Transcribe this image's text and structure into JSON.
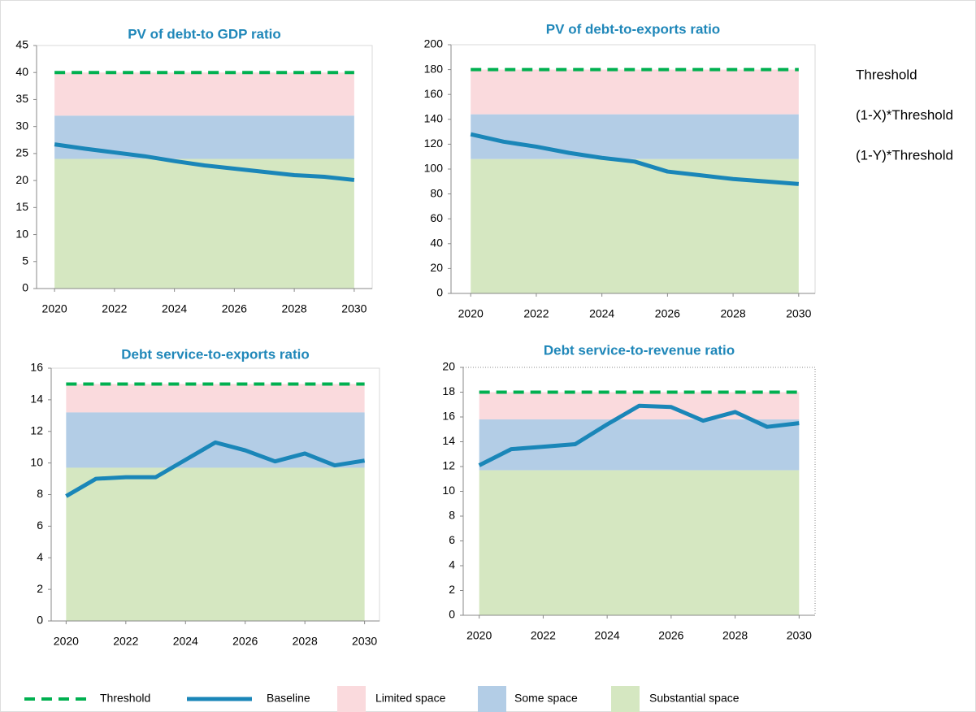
{
  "chart_data": [
    {
      "type": "line",
      "title": "PV of debt-to GDP ratio",
      "x": [
        2020,
        2021,
        2022,
        2023,
        2024,
        2025,
        2026,
        2027,
        2028,
        2029,
        2030
      ],
      "xlim": [
        2019.4,
        2030.6
      ],
      "xticks": [
        2020,
        2022,
        2024,
        2026,
        2028,
        2030
      ],
      "ylim": [
        0,
        45
      ],
      "yticks": [
        0,
        5,
        10,
        15,
        20,
        25,
        30,
        35,
        40,
        45
      ],
      "threshold": 40,
      "x_threshold": 32,
      "y_threshold": 24,
      "series": [
        {
          "color": "#1a86b8",
          "values": [
            26.7,
            25.9,
            25.2,
            24.5,
            23.6,
            22.8,
            22.2,
            21.6,
            21.0,
            20.7,
            20.1
          ]
        }
      ]
    },
    {
      "type": "line",
      "title": "PV of debt-to-exports ratio",
      "x": [
        2020,
        2021,
        2022,
        2023,
        2024,
        2025,
        2026,
        2027,
        2028,
        2029,
        2030
      ],
      "xlim": [
        2019.4,
        2030.5
      ],
      "xticks": [
        2020,
        2022,
        2024,
        2026,
        2028,
        2030
      ],
      "ylim": [
        0,
        200
      ],
      "yticks": [
        0,
        20,
        40,
        60,
        80,
        100,
        120,
        140,
        160,
        180,
        200
      ],
      "threshold": 180,
      "x_threshold": 144,
      "y_threshold": 108,
      "series": [
        {
          "color": "#1a86b8",
          "values": [
            128,
            122,
            118,
            113,
            109,
            106,
            98,
            95,
            92,
            90,
            88
          ]
        }
      ]
    },
    {
      "type": "line",
      "title": "Debt service-to-exports ratio",
      "x": [
        2020,
        2021,
        2022,
        2023,
        2024,
        2025,
        2026,
        2027,
        2028,
        2029,
        2030
      ],
      "xlim": [
        2019.5,
        2030.5
      ],
      "xticks": [
        2020,
        2022,
        2024,
        2026,
        2028,
        2030
      ],
      "ylim": [
        0,
        16
      ],
      "yticks": [
        0,
        2,
        4,
        6,
        8,
        10,
        12,
        14,
        16
      ],
      "threshold": 15,
      "x_threshold": 13.2,
      "y_threshold": 9.7,
      "series": [
        {
          "color": "#1a86b8",
          "values": [
            7.9,
            9.0,
            9.1,
            9.1,
            10.2,
            11.3,
            10.8,
            10.1,
            10.6,
            9.85,
            10.15
          ]
        }
      ]
    },
    {
      "type": "line",
      "title": "Debt service-to-revenue ratio",
      "x": [
        2020,
        2021,
        2022,
        2023,
        2024,
        2025,
        2026,
        2027,
        2028,
        2029,
        2030
      ],
      "xlim": [
        2019.5,
        2030.5
      ],
      "xticks": [
        2020,
        2022,
        2024,
        2026,
        2028,
        2030
      ],
      "ylim": [
        0,
        20
      ],
      "yticks": [
        0,
        2,
        4,
        6,
        8,
        10,
        12,
        14,
        16,
        18,
        20
      ],
      "threshold": 18,
      "x_threshold": 15.8,
      "y_threshold": 11.7,
      "series": [
        {
          "color": "#1a86b8",
          "values": [
            12.1,
            13.4,
            13.6,
            13.8,
            15.4,
            16.9,
            16.8,
            15.7,
            16.4,
            15.2,
            15.5
          ]
        }
      ]
    }
  ],
  "legend": [
    {
      "label": "Threshold",
      "color": "#00b050"
    },
    {
      "label": "Baseline",
      "color": "#1a86b8"
    },
    {
      "label": "Limited space",
      "color": "#fadadd"
    },
    {
      "label": "Some space",
      "color": "#b3cde6"
    },
    {
      "label": "Substantial space",
      "color": "#d5e7c1"
    }
  ],
  "side_labels": [
    "Threshold",
    "(1-X)*Threshold",
    "(1-Y)*Threshold"
  ]
}
